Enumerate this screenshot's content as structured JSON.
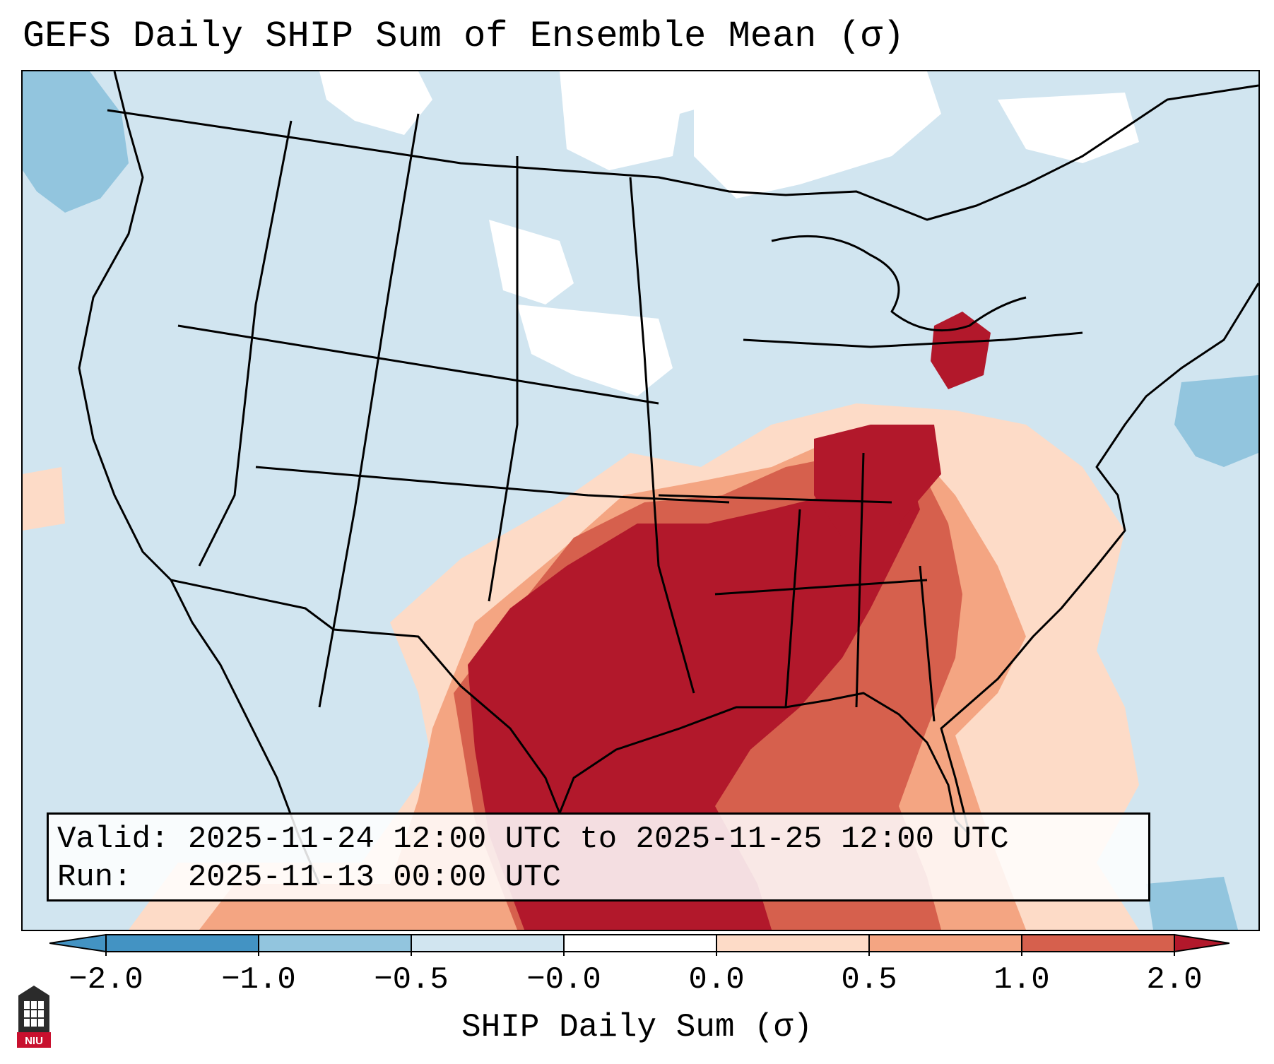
{
  "title": "GEFS Daily SHIP Sum of Ensemble Mean (σ)",
  "info": {
    "valid_line": "Valid: 2025-11-24 12:00 UTC to 2025-11-25 12:00 UTC",
    "run_line": "Run:   2025-11-13 00:00 UTC"
  },
  "colorbar": {
    "label": "SHIP Daily Sum (σ)",
    "ticks": [
      "−2.0",
      "−1.0",
      "−0.5",
      "−0.0",
      "0.0",
      "0.5",
      "1.0",
      "2.0"
    ],
    "colors": [
      "#4393c3",
      "#92c5de",
      "#d1e5f0",
      "#ffffff",
      "#fddbc7",
      "#f4a582",
      "#d6604d",
      "#b2182b"
    ],
    "extend": "both"
  },
  "map": {
    "background_color": "#d1e5f0",
    "high_anomaly_color": "#b2182b",
    "region": "Contiguous United States with state boundaries"
  },
  "logo": {
    "text": "NIU"
  }
}
